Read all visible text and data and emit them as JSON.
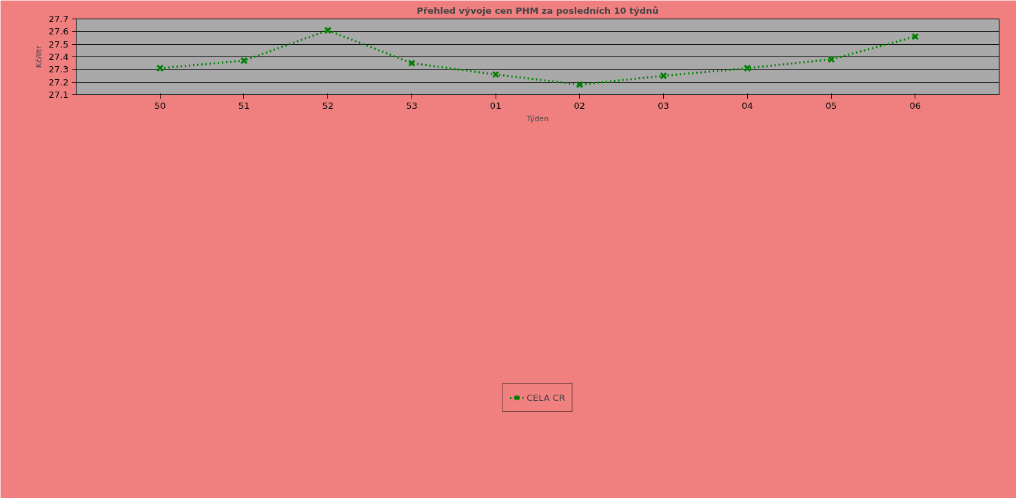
{
  "chart_data": {
    "type": "line",
    "title": "Přehled vývoje cen PHM za posledních 10 týdnů",
    "xlabel": "Týden",
    "ylabel": "Kč/litr",
    "categories": [
      "50",
      "51",
      "52",
      "53",
      "01",
      "02",
      "03",
      "04",
      "05",
      "06"
    ],
    "series": [
      {
        "name": "CELA CR",
        "color": "#008000",
        "values": [
          27.31,
          27.37,
          27.61,
          27.35,
          27.26,
          27.18,
          27.25,
          27.31,
          27.38,
          27.56
        ]
      }
    ],
    "ylim": [
      27.1,
      27.7
    ],
    "yticks": [
      27.1,
      27.2,
      27.3,
      27.4,
      27.5,
      27.6,
      27.7
    ],
    "grid": "y",
    "legend": "bottom",
    "marker": "cross",
    "line_style": "dotted"
  }
}
